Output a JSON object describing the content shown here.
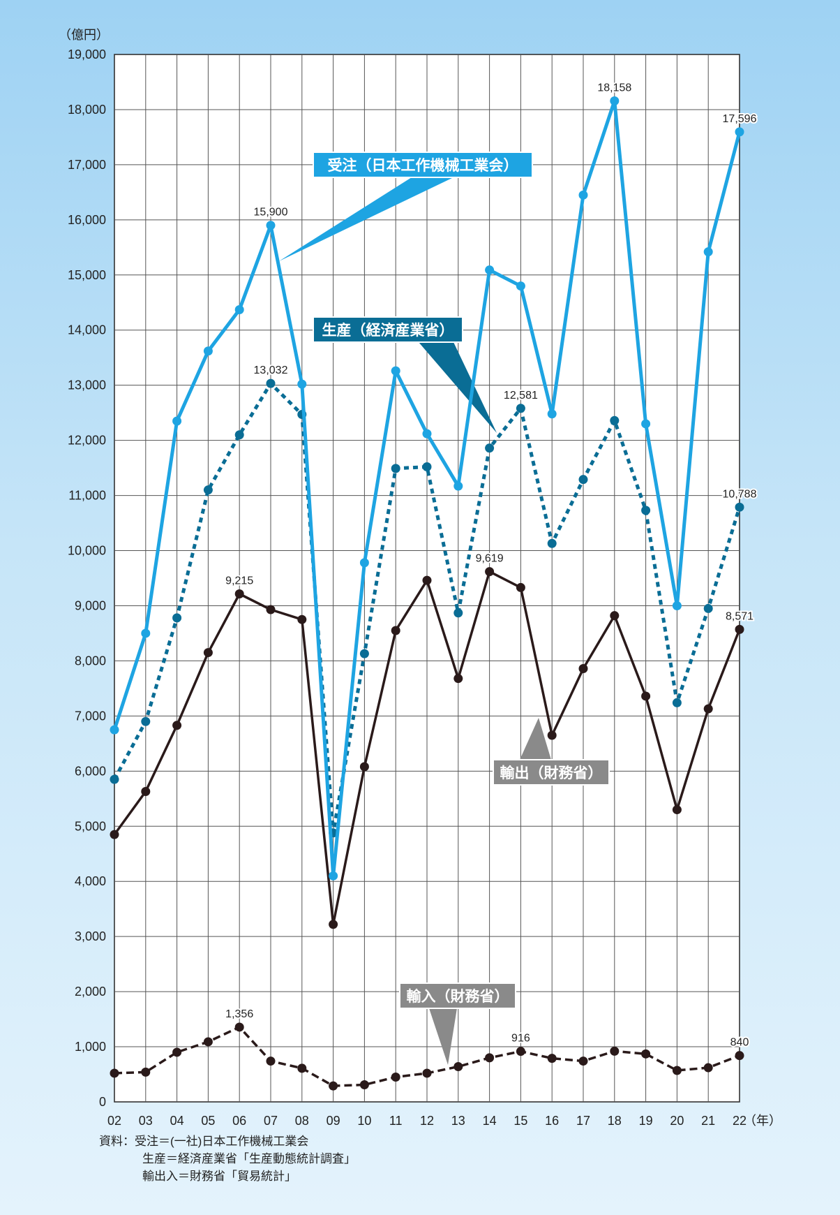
{
  "chart_data": {
    "type": "line",
    "ylabel": "（億円）",
    "xlabel": "（年）",
    "ylim": [
      0,
      19000
    ],
    "ytick_step": 1000,
    "yticks": [
      "0",
      "1,000",
      "2,000",
      "3,000",
      "4,000",
      "5,000",
      "6,000",
      "7,000",
      "8,000",
      "9,000",
      "10,000",
      "11,000",
      "12,000",
      "13,000",
      "14,000",
      "15,000",
      "16,000",
      "17,000",
      "18,000",
      "19,000"
    ],
    "categories": [
      "02",
      "03",
      "04",
      "05",
      "06",
      "07",
      "08",
      "09",
      "10",
      "11",
      "12",
      "13",
      "14",
      "15",
      "16",
      "17",
      "18",
      "19",
      "20",
      "21",
      "22"
    ],
    "grid": true,
    "series": [
      {
        "name": "受注（日本工作機械工業会）",
        "color": "#1ea4e2",
        "style": "solid",
        "values": [
          6750,
          8500,
          12350,
          13620,
          14370,
          15900,
          13020,
          4100,
          9780,
          13260,
          12120,
          11170,
          15090,
          14800,
          12480,
          16450,
          18158,
          12300,
          9000,
          15420,
          17596
        ],
        "labels": {
          "5": "15,900",
          "16": "18,158",
          "20": "17,596"
        }
      },
      {
        "name": "生産（経済産業省）",
        "color": "#0a6d95",
        "style": "dotted",
        "values": [
          5850,
          6900,
          8780,
          11100,
          12100,
          13032,
          12470,
          4880,
          8130,
          11490,
          11520,
          8870,
          11860,
          12581,
          10130,
          11290,
          12360,
          10730,
          7240,
          8950,
          10788
        ],
        "labels": {
          "5": "13,032",
          "13": "12,581",
          "20": "10,788"
        }
      },
      {
        "name": "輸出（財務省）",
        "color": "#2a1a1a",
        "style": "solid",
        "values": [
          4850,
          5630,
          6830,
          8150,
          9215,
          8930,
          8750,
          3220,
          6080,
          8550,
          9460,
          7680,
          9619,
          9330,
          6650,
          7860,
          8820,
          7360,
          5300,
          7130,
          8571
        ],
        "labels": {
          "4": "9,215",
          "12": "9,619",
          "20": "8,571"
        }
      },
      {
        "name": "輸入（財務省）",
        "color": "#2a1a1a",
        "style": "dashed",
        "values": [
          520,
          540,
          900,
          1090,
          1356,
          740,
          610,
          290,
          310,
          450,
          520,
          640,
          800,
          916,
          790,
          740,
          920,
          870,
          570,
          620,
          840
        ],
        "labels": {
          "4": "1,356",
          "13": "916",
          "20": "840"
        }
      }
    ]
  },
  "source": {
    "line1": "資料：受注＝(一社)日本工作機械工業会",
    "line2": "生産＝経済産業省「生産動態統計調査」",
    "line3": "輸出入＝財務省「貿易統計」"
  }
}
